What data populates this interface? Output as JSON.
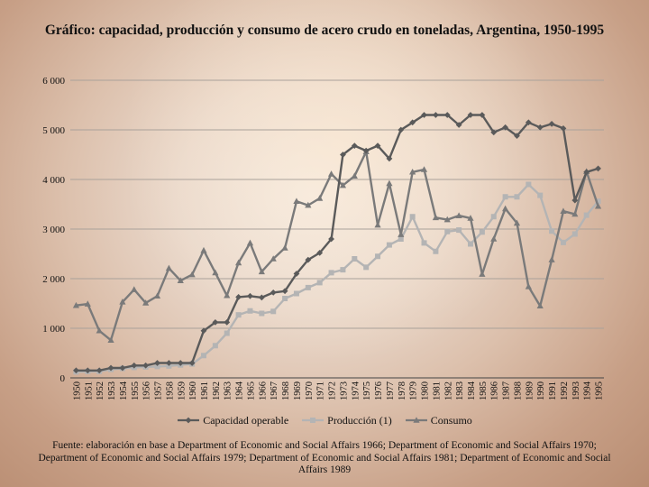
{
  "title": "Gráfico: capacidad, producción y consumo de acero crudo en toneladas, Argentina, 1950-1995",
  "source_note": "Fuente: elaboración en base a Department of Economic and Social Affairs 1966; Department of Economic and Social Affairs 1970; Department of Economic and Social Affairs 1979; Department of Economic and Social Affairs 1981; Department of Economic and Social Affairs 1989",
  "chart_data": {
    "type": "line",
    "title": "Gráfico: capacidad, producción y consumo de acero crudo en toneladas, Argentina, 1950-1995",
    "xlabel": "",
    "ylabel": "",
    "ylim": [
      0,
      6000
    ],
    "yticks": [
      0,
      1000,
      2000,
      3000,
      4000,
      5000,
      6000
    ],
    "ytick_labels": [
      "0",
      "1 000",
      "2 000",
      "3 000",
      "4 000",
      "5 000",
      "6 000"
    ],
    "grid": true,
    "legend_position": "bottom",
    "categories": [
      "1950",
      "1951",
      "1952",
      "1953",
      "1954",
      "1955",
      "1956",
      "1957",
      "1958",
      "1959",
      "1960",
      "1961",
      "1962",
      "1963",
      "1964",
      "1965",
      "1966",
      "1967",
      "1968",
      "1969",
      "1970",
      "1971",
      "1972",
      "1973",
      "1974",
      "1975",
      "1976",
      "1977",
      "1978",
      "1979",
      "1980",
      "1981",
      "1982",
      "1983",
      "1984",
      "1985",
      "1986",
      "1987",
      "1988",
      "1989",
      "1990",
      "1991",
      "1992",
      "1993",
      "1994",
      "1995"
    ],
    "series": [
      {
        "name": "Capacidad operable",
        "marker": "diamond",
        "color": "#5a5a5a",
        "values": [
          150,
          150,
          150,
          200,
          200,
          250,
          250,
          300,
          300,
          300,
          300,
          950,
          1120,
          1120,
          1630,
          1650,
          1620,
          1720,
          1750,
          2100,
          2380,
          2520,
          2800,
          4500,
          4680,
          4580,
          4680,
          4420,
          5000,
          5150,
          5300,
          5300,
          5300,
          5100,
          5300,
          5300,
          4950,
          5050,
          4880,
          5150,
          5050,
          5120,
          5030,
          3580,
          4150,
          4220
        ]
      },
      {
        "name": "Producción (1)",
        "marker": "square",
        "color": "#b4b4b4",
        "values": [
          120,
          130,
          130,
          170,
          190,
          210,
          220,
          230,
          240,
          260,
          280,
          450,
          650,
          900,
          1270,
          1350,
          1300,
          1340,
          1600,
          1700,
          1820,
          1920,
          2120,
          2180,
          2400,
          2230,
          2450,
          2680,
          2800,
          3250,
          2720,
          2550,
          2950,
          2980,
          2700,
          2940,
          3250,
          3650,
          3650,
          3900,
          3680,
          2960,
          2730,
          2900,
          3280,
          3560
        ]
      },
      {
        "name": "Consumo",
        "marker": "triangle",
        "color": "#7a7a7a",
        "values": [
          1460,
          1490,
          950,
          760,
          1530,
          1780,
          1510,
          1650,
          2210,
          1960,
          2080,
          2570,
          2120,
          1660,
          2320,
          2720,
          2140,
          2400,
          2620,
          3560,
          3480,
          3620,
          4110,
          3880,
          4070,
          4560,
          3080,
          3920,
          2890,
          4150,
          4200,
          3230,
          3190,
          3270,
          3220,
          2090,
          2800,
          3410,
          3120,
          1840,
          1450,
          2380,
          3360,
          3300,
          4160,
          3460
        ]
      }
    ]
  }
}
